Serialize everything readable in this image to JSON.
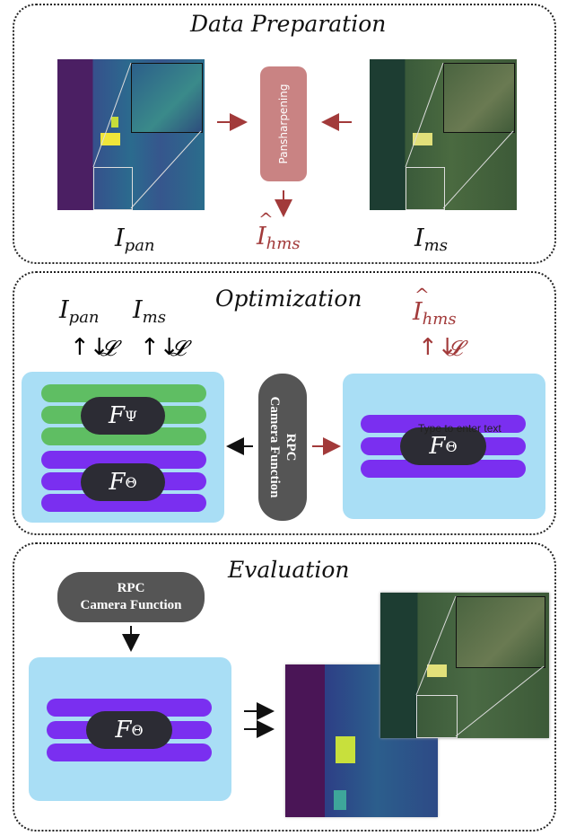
{
  "sections": {
    "prep": {
      "title": "Data Preparation"
    },
    "opt": {
      "title": "Optimization"
    },
    "eval": {
      "title": "Evaluation"
    }
  },
  "labels": {
    "pan_sym": "I",
    "pan_sub": "pan",
    "ms_sym": "I",
    "ms_sub": "ms",
    "hms_sym": "I",
    "hms_sub": "hms",
    "loss": "𝓛",
    "psi_sym": "F",
    "psi_sub": "Ψ",
    "theta_sym": "F",
    "theta_sub": "Θ"
  },
  "pansharpening": {
    "label": "Pansharpening"
  },
  "rpc": {
    "line1": "RPC",
    "line2": "Camera Function"
  },
  "textbox": {
    "placeholder": "Type to enter text"
  },
  "colors": {
    "red_accent": "#a23a3a",
    "light_blue": "#a9def5",
    "green_bar": "#5fbe63",
    "purple_bar": "#7a2ff0",
    "pansharpening_box": "#c98383",
    "rpc_box": "#555555"
  }
}
